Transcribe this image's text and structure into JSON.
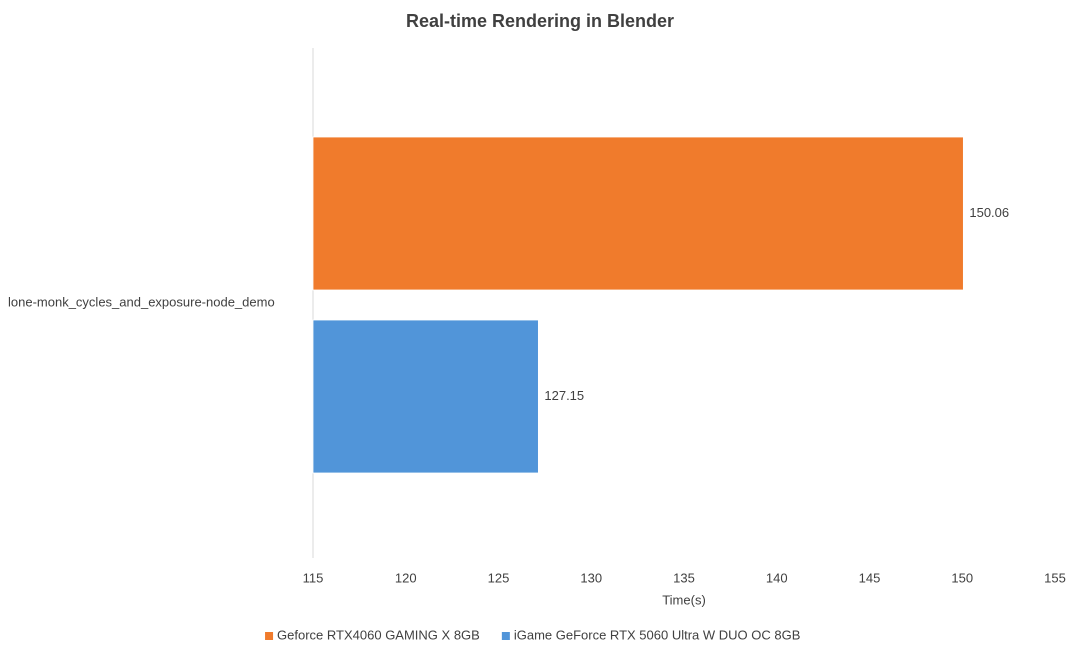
{
  "chart_data": {
    "type": "hbar",
    "title": "Real-time Rendering in Blender",
    "categories": [
      "lone-monk_cycles_and_exposure-node_demo"
    ],
    "series": [
      {
        "name": "Geforce RTX4060 GAMING X 8GB",
        "color": "#f07b2c",
        "values": [
          150.06
        ]
      },
      {
        "name": "iGame GeForce RTX 5060 Ultra W DUO OC 8GB",
        "color": "#5195d9",
        "values": [
          127.15
        ]
      }
    ],
    "x_label": "Time(s)",
    "xlim": [
      115,
      155
    ],
    "xticks": [
      115,
      120,
      125,
      130,
      135,
      140,
      145,
      150,
      155
    ],
    "grid": false,
    "legend": "bottom"
  }
}
